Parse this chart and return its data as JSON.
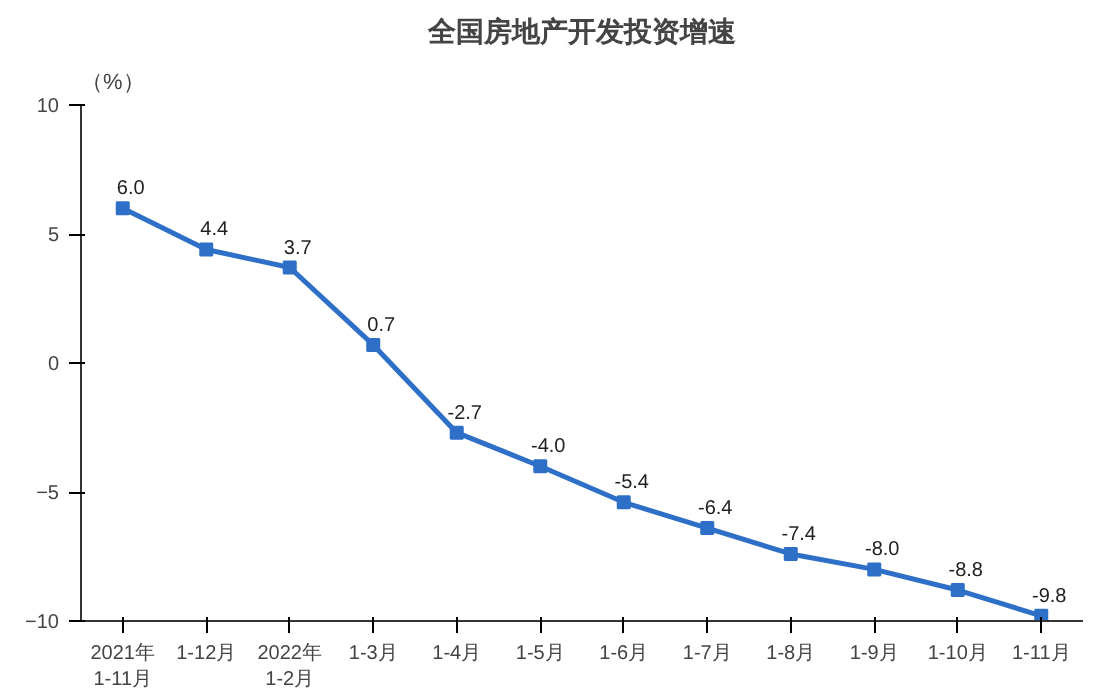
{
  "chart_data": {
    "type": "line",
    "title": "全国房地产开发投资增速",
    "ylabel": "（%）",
    "categories": [
      "2021年\n1-11月",
      "1-12月",
      "2022年\n1-2月",
      "1-3月",
      "1-4月",
      "1-5月",
      "1-6月",
      "1-7月",
      "1-8月",
      "1-9月",
      "1-10月",
      "1-11月"
    ],
    "values": [
      6.0,
      4.4,
      3.7,
      0.7,
      -2.7,
      -4.0,
      -5.4,
      -6.4,
      -7.4,
      -8.0,
      -8.8,
      -9.8
    ],
    "value_labels": [
      "6.0",
      "4.4",
      "3.7",
      "0.7",
      "-2.7",
      "-4.0",
      "-5.4",
      "-6.4",
      "-7.4",
      "-8.0",
      "-8.8",
      "-9.8"
    ],
    "color": "#2e6fc7",
    "ylim": [
      -10,
      10
    ],
    "yticks": [
      -10,
      -5,
      0,
      5,
      10
    ],
    "grid": false,
    "marker": "square",
    "line_style": "solid"
  }
}
